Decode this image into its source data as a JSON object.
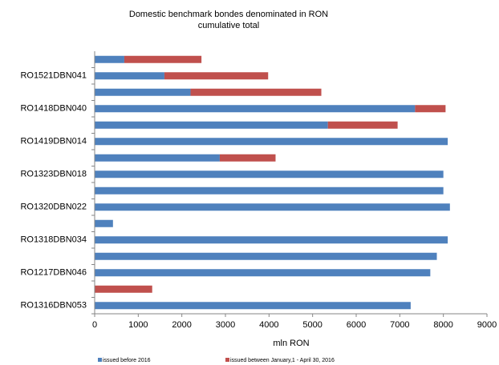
{
  "chart_data": {
    "type": "bar",
    "orientation": "horizontal",
    "stacked": true,
    "title": "Domestic benchmark bondes denominated in RON",
    "subtitle": "cumulative total",
    "xlabel": "mln RON",
    "ylabel": "",
    "xlim": [
      0,
      9000
    ],
    "x_ticks": [
      "0",
      "1000",
      "2000",
      "3000",
      "4000",
      "5000",
      "6000",
      "7000",
      "8000",
      "9000"
    ],
    "grid": false,
    "legend_position": "bottom",
    "categories": [
      "RO1316DBN053",
      "",
      "RO1217DBN046",
      "",
      "RO1318DBN034",
      "",
      "RO1320DBN022",
      "",
      "RO1323DBN018",
      "",
      "RO1419DBN014",
      "",
      "RO1418DBN040",
      "",
      "RO1521DBN041",
      ""
    ],
    "series": [
      {
        "name": "issued before 2016",
        "color": "#4f81bd",
        "values": [
          7250,
          0,
          7700,
          7850,
          8100,
          420,
          8150,
          8000,
          8000,
          2870,
          8100,
          5350,
          7350,
          2200,
          1600,
          680
        ]
      },
      {
        "name": "issued between January,1 - April 30, 2016",
        "color": "#c0504d",
        "values": [
          0,
          1320,
          0,
          0,
          0,
          0,
          0,
          0,
          0,
          1280,
          0,
          1600,
          700,
          3000,
          2380,
          1770
        ]
      }
    ]
  }
}
